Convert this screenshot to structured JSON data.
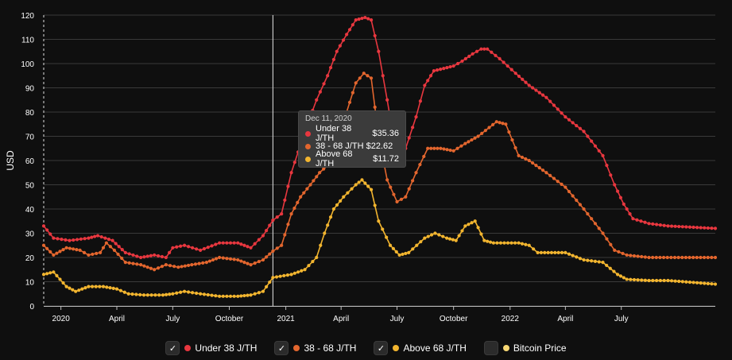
{
  "chart_data": {
    "type": "line",
    "ylabel": "USD",
    "ylim": [
      0,
      120
    ],
    "yticks": [
      "0",
      "10",
      "20",
      "30",
      "40",
      "50",
      "60",
      "70",
      "80",
      "90",
      "100",
      "110",
      "120"
    ],
    "xlim": [
      "2019-12-04",
      "2022-12-01"
    ],
    "xticks": [
      {
        "date": "2020-01-01",
        "label": "2020"
      },
      {
        "date": "2020-04-01",
        "label": "April"
      },
      {
        "date": "2020-07-01",
        "label": "July"
      },
      {
        "date": "2020-10-01",
        "label": "October"
      },
      {
        "date": "2021-01-01",
        "label": "2021"
      },
      {
        "date": "2021-04-01",
        "label": "April"
      },
      {
        "date": "2021-07-01",
        "label": "July"
      },
      {
        "date": "2021-10-01",
        "label": "October"
      },
      {
        "date": "2022-01-01",
        "label": "2022"
      },
      {
        "date": "2022-04-01",
        "label": "April"
      },
      {
        "date": "2022-07-01",
        "label": "July"
      }
    ],
    "grid": true,
    "legend_position": "bottom",
    "cursor_date": "2020-12-11",
    "series": [
      {
        "name": "Under 38 J/TH",
        "color": "#e8373f",
        "checked": true,
        "points": [
          [
            "2019-12-04",
            33
          ],
          [
            "2019-12-20",
            28
          ],
          [
            "2020-01-15",
            27
          ],
          [
            "2020-02-15",
            28
          ],
          [
            "2020-03-01",
            29
          ],
          [
            "2020-03-25",
            27
          ],
          [
            "2020-04-15",
            22
          ],
          [
            "2020-05-10",
            20
          ],
          [
            "2020-06-01",
            21
          ],
          [
            "2020-06-20",
            20
          ],
          [
            "2020-07-01",
            24
          ],
          [
            "2020-07-20",
            25
          ],
          [
            "2020-08-15",
            23
          ],
          [
            "2020-09-15",
            26
          ],
          [
            "2020-10-15",
            26
          ],
          [
            "2020-11-05",
            24
          ],
          [
            "2020-11-25",
            29
          ],
          [
            "2020-12-11",
            35.36
          ],
          [
            "2020-12-25",
            38
          ],
          [
            "2021-01-10",
            55
          ],
          [
            "2021-02-01",
            72
          ],
          [
            "2021-02-20",
            85
          ],
          [
            "2021-03-10",
            95
          ],
          [
            "2021-03-25",
            105
          ],
          [
            "2021-04-10",
            112
          ],
          [
            "2021-04-25",
            118
          ],
          [
            "2021-05-10",
            119
          ],
          [
            "2021-05-20",
            118
          ],
          [
            "2021-06-01",
            105
          ],
          [
            "2021-06-15",
            85
          ],
          [
            "2021-06-25",
            70
          ],
          [
            "2021-07-05",
            62
          ],
          [
            "2021-07-15",
            65
          ],
          [
            "2021-08-01",
            78
          ],
          [
            "2021-08-15",
            91
          ],
          [
            "2021-08-30",
            97
          ],
          [
            "2021-09-15",
            98
          ],
          [
            "2021-10-01",
            99
          ],
          [
            "2021-10-15",
            101
          ],
          [
            "2021-11-01",
            104
          ],
          [
            "2021-11-15",
            106
          ],
          [
            "2021-11-25",
            106
          ],
          [
            "2021-12-15",
            102
          ],
          [
            "2022-01-10",
            96
          ],
          [
            "2022-02-01",
            91
          ],
          [
            "2022-03-01",
            86
          ],
          [
            "2022-04-01",
            78
          ],
          [
            "2022-05-01",
            72
          ],
          [
            "2022-06-01",
            62
          ],
          [
            "2022-06-20",
            50
          ],
          [
            "2022-07-05",
            42
          ],
          [
            "2022-07-20",
            36
          ],
          [
            "2022-08-15",
            34
          ],
          [
            "2022-09-15",
            33
          ],
          [
            "2022-12-01",
            32
          ]
        ]
      },
      {
        "name": "38 - 68 J/TH",
        "color": "#e3662e",
        "checked": true,
        "points": [
          [
            "2019-12-04",
            25
          ],
          [
            "2019-12-20",
            21
          ],
          [
            "2020-01-10",
            24
          ],
          [
            "2020-02-01",
            23
          ],
          [
            "2020-02-15",
            21
          ],
          [
            "2020-03-05",
            22
          ],
          [
            "2020-03-15",
            26
          ],
          [
            "2020-03-28",
            23
          ],
          [
            "2020-04-15",
            18
          ],
          [
            "2020-05-10",
            17
          ],
          [
            "2020-06-01",
            15
          ],
          [
            "2020-06-20",
            17
          ],
          [
            "2020-07-10",
            16
          ],
          [
            "2020-08-01",
            17
          ],
          [
            "2020-08-25",
            18
          ],
          [
            "2020-09-15",
            20
          ],
          [
            "2020-10-15",
            19
          ],
          [
            "2020-11-05",
            17
          ],
          [
            "2020-11-25",
            19
          ],
          [
            "2020-12-11",
            22.62
          ],
          [
            "2020-12-25",
            25
          ],
          [
            "2021-01-10",
            38
          ],
          [
            "2021-01-25",
            45
          ],
          [
            "2021-02-10",
            50
          ],
          [
            "2021-02-25",
            55
          ],
          [
            "2021-03-10",
            58
          ],
          [
            "2021-03-25",
            67
          ],
          [
            "2021-04-10",
            80
          ],
          [
            "2021-04-25",
            92
          ],
          [
            "2021-05-08",
            96
          ],
          [
            "2021-05-20",
            94
          ],
          [
            "2021-06-01",
            70
          ],
          [
            "2021-06-15",
            52
          ],
          [
            "2021-07-01",
            43
          ],
          [
            "2021-07-15",
            45
          ],
          [
            "2021-08-01",
            55
          ],
          [
            "2021-08-20",
            65
          ],
          [
            "2021-09-10",
            65
          ],
          [
            "2021-10-01",
            64
          ],
          [
            "2021-10-20",
            67
          ],
          [
            "2021-11-10",
            70
          ],
          [
            "2021-12-10",
            76
          ],
          [
            "2021-12-25",
            75
          ],
          [
            "2022-01-15",
            62
          ],
          [
            "2022-02-01",
            60
          ],
          [
            "2022-03-01",
            55
          ],
          [
            "2022-04-01",
            49
          ],
          [
            "2022-05-01",
            40
          ],
          [
            "2022-06-01",
            30
          ],
          [
            "2022-06-20",
            23
          ],
          [
            "2022-07-10",
            21
          ],
          [
            "2022-08-15",
            20
          ],
          [
            "2022-12-01",
            20
          ]
        ]
      },
      {
        "name": "Above 68 J/TH",
        "color": "#f2b52f",
        "checked": true,
        "points": [
          [
            "2019-12-04",
            13
          ],
          [
            "2019-12-20",
            14
          ],
          [
            "2020-01-10",
            8
          ],
          [
            "2020-01-25",
            6
          ],
          [
            "2020-02-15",
            8
          ],
          [
            "2020-03-10",
            8
          ],
          [
            "2020-04-01",
            7
          ],
          [
            "2020-04-20",
            5
          ],
          [
            "2020-05-15",
            4.5
          ],
          [
            "2020-06-15",
            4.5
          ],
          [
            "2020-07-01",
            5
          ],
          [
            "2020-07-20",
            6
          ],
          [
            "2020-08-15",
            5
          ],
          [
            "2020-09-15",
            4
          ],
          [
            "2020-10-15",
            4
          ],
          [
            "2020-11-05",
            4.5
          ],
          [
            "2020-11-25",
            6
          ],
          [
            "2020-12-11",
            11.72
          ],
          [
            "2021-01-10",
            13
          ],
          [
            "2021-02-01",
            15
          ],
          [
            "2021-02-20",
            20
          ],
          [
            "2021-03-05",
            30
          ],
          [
            "2021-03-20",
            40
          ],
          [
            "2021-04-05",
            45
          ],
          [
            "2021-04-25",
            50
          ],
          [
            "2021-05-05",
            52
          ],
          [
            "2021-05-20",
            48
          ],
          [
            "2021-06-01",
            35
          ],
          [
            "2021-06-20",
            25
          ],
          [
            "2021-07-05",
            21
          ],
          [
            "2021-07-20",
            22
          ],
          [
            "2021-08-15",
            28
          ],
          [
            "2021-09-01",
            30
          ],
          [
            "2021-09-20",
            28
          ],
          [
            "2021-10-05",
            27
          ],
          [
            "2021-10-20",
            33
          ],
          [
            "2021-11-05",
            35
          ],
          [
            "2021-11-20",
            27
          ],
          [
            "2021-12-05",
            26
          ],
          [
            "2022-01-15",
            26
          ],
          [
            "2022-02-01",
            25
          ],
          [
            "2022-02-15",
            22
          ],
          [
            "2022-04-01",
            22
          ],
          [
            "2022-05-01",
            19
          ],
          [
            "2022-06-01",
            18
          ],
          [
            "2022-06-25",
            13
          ],
          [
            "2022-07-10",
            11
          ],
          [
            "2022-08-15",
            10.5
          ],
          [
            "2022-09-15",
            10.5
          ],
          [
            "2022-12-01",
            9
          ]
        ]
      },
      {
        "name": "Bitcoin Price",
        "color": "#f7d774",
        "checked": false,
        "points": []
      }
    ]
  },
  "tooltip": {
    "date": "Dec 11, 2020",
    "rows": [
      {
        "label": "Under 38 J/TH",
        "value": "$35.36",
        "color": "#e8373f"
      },
      {
        "label": "38 - 68 J/TH",
        "value": "$22.62",
        "color": "#e3662e"
      },
      {
        "label": "Above 68 J/TH",
        "value": "$11.72",
        "color": "#f2b52f"
      }
    ]
  },
  "legend": {
    "check_glyph": "✓",
    "items": [
      {
        "label": "Under 38 J/TH",
        "color": "#e8373f",
        "checked": true
      },
      {
        "label": "38 - 68 J/TH",
        "color": "#e3662e",
        "checked": true
      },
      {
        "label": "Above 68 J/TH",
        "color": "#f2b52f",
        "checked": true
      },
      {
        "label": "Bitcoin Price",
        "color": "#f7d774",
        "checked": false
      }
    ]
  }
}
